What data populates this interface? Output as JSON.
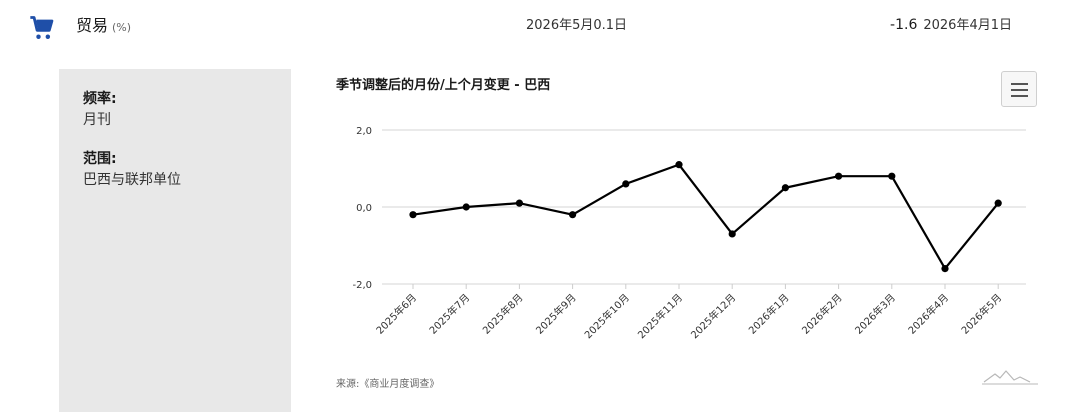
{
  "indicator": {
    "title": "贸易",
    "unit": "(%)",
    "date": "2026年5月0.1日",
    "prev_value": "-1.6",
    "prev_date": "2026年4月1日"
  },
  "sidebar": {
    "frequency_label": "频率:",
    "frequency_value": "月刊",
    "scope_label": "范围:",
    "scope_value": "巴西与联邦单位"
  },
  "chart": {
    "title": "季节调整后的月份/上个月变更 - 巴西",
    "source": "来源:《商业月度调查》",
    "menu_icon": "hamburger-icon",
    "logo_icon": "mountain-logo-icon"
  },
  "chart_data": {
    "type": "line",
    "title": "季节调整后的月份/上个月变更 - 巴西",
    "categories": [
      "2025年6月",
      "2025年7月",
      "2025年8月",
      "2025年9月",
      "2025年10月",
      "2025年11月",
      "2025年12月",
      "2026年1月",
      "2026年2月",
      "2026年3月",
      "2026年4月",
      "2026年5月"
    ],
    "series": [
      {
        "values": [
          -0.2,
          0.0,
          0.1,
          -0.2,
          0.6,
          1.1,
          -0.7,
          0.5,
          0.8,
          0.8,
          -1.6,
          0.1
        ]
      }
    ],
    "yticks": [
      "2,0",
      "0,0",
      "-2,0"
    ],
    "ylim": [
      -2.0,
      2.0
    ],
    "grid": true,
    "xlabel": "",
    "ylabel": "",
    "color": "#000000"
  }
}
